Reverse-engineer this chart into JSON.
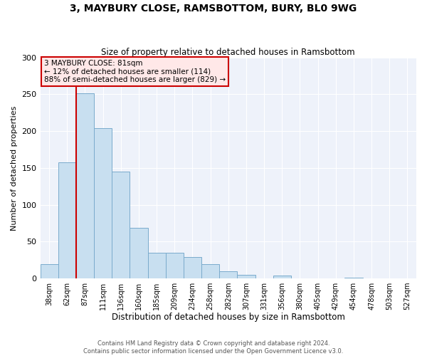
{
  "title": "3, MAYBURY CLOSE, RAMSBOTTOM, BURY, BL0 9WG",
  "subtitle": "Size of property relative to detached houses in Ramsbottom",
  "xlabel": "Distribution of detached houses by size in Ramsbottom",
  "ylabel": "Number of detached properties",
  "bin_labels": [
    "38sqm",
    "62sqm",
    "87sqm",
    "111sqm",
    "136sqm",
    "160sqm",
    "185sqm",
    "209sqm",
    "234sqm",
    "258sqm",
    "282sqm",
    "307sqm",
    "331sqm",
    "356sqm",
    "380sqm",
    "405sqm",
    "429sqm",
    "454sqm",
    "478sqm",
    "503sqm",
    "527sqm"
  ],
  "bar_values": [
    19,
    158,
    251,
    204,
    145,
    69,
    35,
    35,
    29,
    19,
    10,
    5,
    0,
    4,
    0,
    0,
    0,
    1,
    0,
    0,
    0
  ],
  "bar_color": "#c8dff0",
  "bar_edge_color": "#7aabcc",
  "background_color": "#eef2fa",
  "grid_color": "#ffffff",
  "ylim": [
    0,
    300
  ],
  "yticks": [
    0,
    50,
    100,
    150,
    200,
    250,
    300
  ],
  "marker_bin_index": 2,
  "marker_label": "3 MAYBURY CLOSE: 81sqm",
  "annotation_line1": "← 12% of detached houses are smaller (114)",
  "annotation_line2": "88% of semi-detached houses are larger (829) →",
  "annotation_box_facecolor": "#ffe8e8",
  "annotation_box_edgecolor": "#cc0000",
  "red_line_color": "#cc0000",
  "footer1": "Contains HM Land Registry data © Crown copyright and database right 2024.",
  "footer2": "Contains public sector information licensed under the Open Government Licence v3.0.",
  "title_fontsize": 10,
  "subtitle_fontsize": 8.5,
  "ylabel_fontsize": 8,
  "xlabel_fontsize": 8.5,
  "tick_fontsize": 7,
  "footer_fontsize": 6,
  "annot_fontsize": 7.5
}
